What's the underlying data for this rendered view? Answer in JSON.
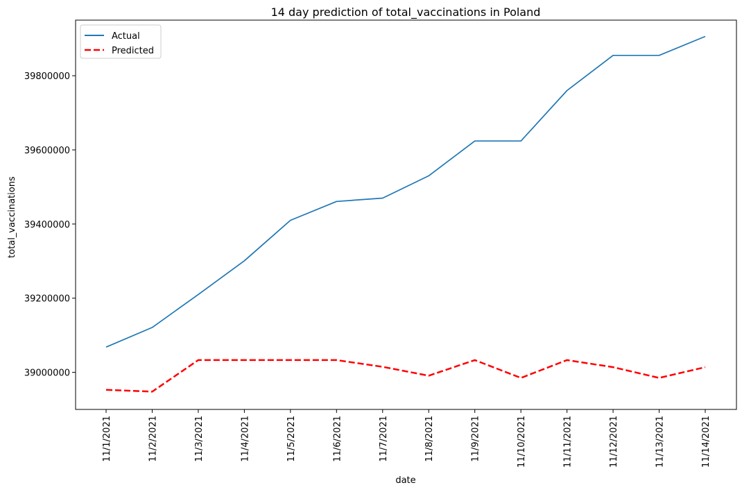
{
  "chart_data": {
    "type": "line",
    "title": "14 day prediction of total_vaccinations in Poland",
    "xlabel": "date",
    "ylabel": "total_vaccinations",
    "categories": [
      "11/1/2021",
      "11/2/2021",
      "11/3/2021",
      "11/4/2021",
      "11/5/2021",
      "11/6/2021",
      "11/7/2021",
      "11/8/2021",
      "11/9/2021",
      "11/10/2021",
      "11/11/2021",
      "11/12/2021",
      "11/13/2021",
      "11/14/2021"
    ],
    "ylim": [
      38900000,
      39950000
    ],
    "yticks": [
      39000000,
      39200000,
      39400000,
      39600000,
      39800000
    ],
    "ytick_labels": [
      "39000000",
      "39200000",
      "39400000",
      "39600000",
      "39800000"
    ],
    "legend_position": "top-left",
    "grid": false,
    "series": [
      {
        "name": "Actual",
        "color": "#1f77b4",
        "style": "solid",
        "values": [
          39068000,
          39121000,
          39210000,
          39301000,
          39410000,
          39461000,
          39470000,
          39530000,
          39624000,
          39624000,
          39760000,
          39855000,
          39855000,
          39906000
        ]
      },
      {
        "name": "Predicted",
        "color": "#ff0000",
        "style": "dashed",
        "values": [
          38953000,
          38948000,
          39033000,
          39033000,
          39033000,
          39033000,
          39015000,
          38991000,
          39033000,
          38985000,
          39033000,
          39014000,
          38985000,
          39014000
        ]
      }
    ]
  }
}
